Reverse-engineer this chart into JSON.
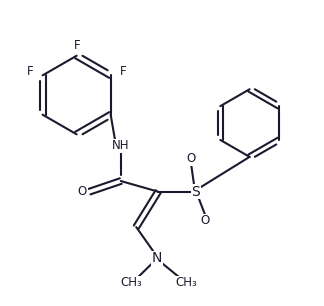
{
  "bg_color": "#ffffff",
  "line_color": "#1a1a2e",
  "line_width": 1.5,
  "font_size": 8.5,
  "figsize": [
    3.24,
    3.06
  ],
  "dpi": 100,
  "xlim": [
    0,
    10
  ],
  "ylim": [
    0,
    9.5
  ]
}
